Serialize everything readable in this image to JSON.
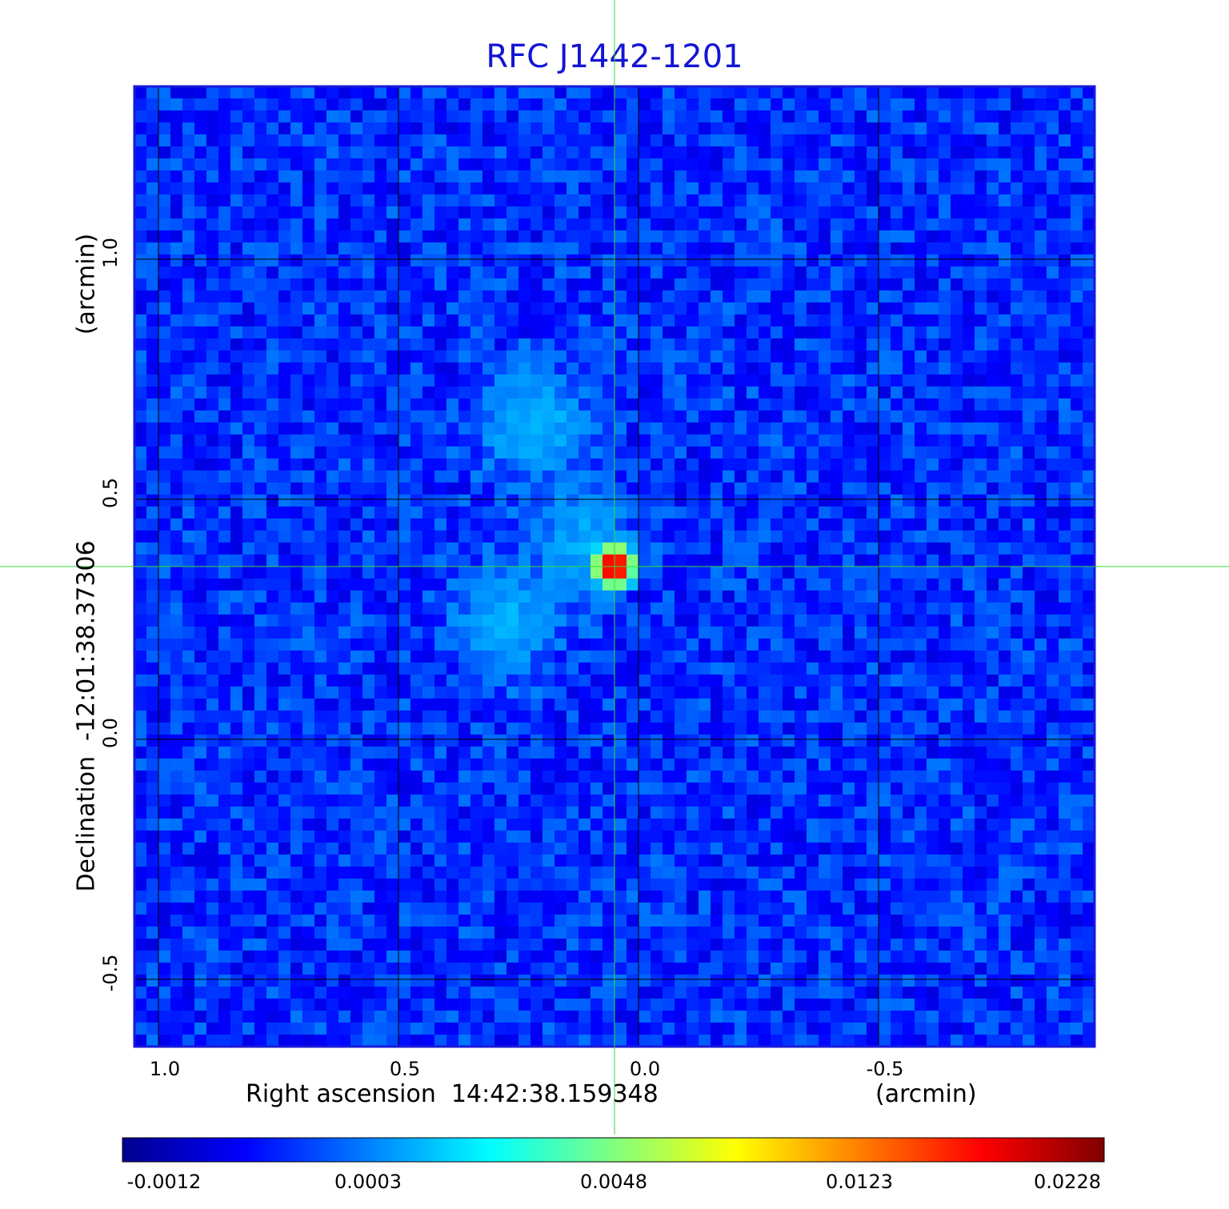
{
  "chart_data": {
    "type": "heatmap",
    "title": "RFC J1442-1201",
    "xlabel": "Right ascension  14:42:38.159348",
    "xunit": "(arcmin)",
    "ylabel": "Declination  -12:01:38.37306",
    "yunit": "(arcmin)",
    "x_ticks": [
      "1.0",
      "0.5",
      "0.0",
      "-0.5"
    ],
    "x_tick_values": [
      1.0,
      0.5,
      0.0,
      -0.5
    ],
    "y_ticks": [
      "1.0",
      "0.5",
      "0.0",
      "-0.5"
    ],
    "y_tick_values": [
      1.0,
      0.5,
      0.0,
      -0.5
    ],
    "xlim": [
      1.05,
      -0.95
    ],
    "ylim": [
      -0.64,
      1.36
    ],
    "grid": true,
    "crosshair": {
      "x": 0.05,
      "y": 0.36
    },
    "sources": [
      {
        "x": 0.05,
        "y": 0.36,
        "peak": 0.0228
      },
      {
        "x": 0.22,
        "y": 0.66,
        "peak": 0.0015
      },
      {
        "x": 0.28,
        "y": 0.24,
        "peak": 0.0013
      },
      {
        "x": 0.12,
        "y": 0.42,
        "peak": 0.0011
      }
    ],
    "colorbar": {
      "tick_labels": [
        "-0.0012",
        "0.0003",
        "0.0048",
        "0.0123",
        "0.0228"
      ],
      "colors": [
        "#00008f",
        "#0000ff",
        "#00ffff",
        "#ffff00",
        "#ff0000",
        "#800000"
      ]
    },
    "background_level": -0.0002
  }
}
